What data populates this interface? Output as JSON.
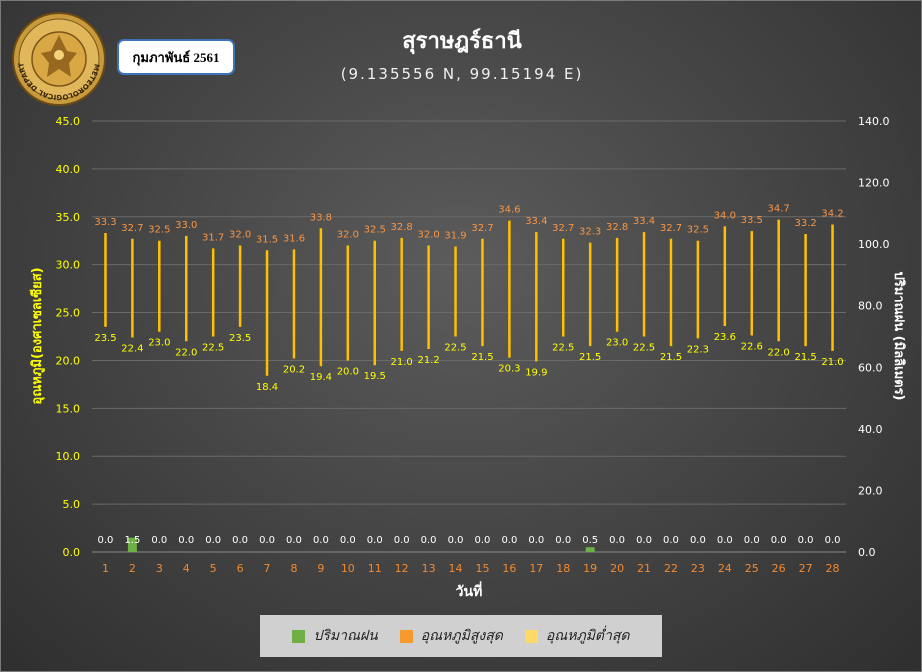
{
  "header": {
    "month_label": "กุมภาพันธ์ 2561",
    "logo_text": "METEOROLOGICAL DEPARTMENT"
  },
  "chart_data": {
    "type": "bar",
    "title": "สุราษฎร์ธานี",
    "subtitle": "(9.135556 N, 99.15194 E)",
    "xlabel": "วันที่",
    "ylabel_left": "อุณหภูมิ(องศาเซลเซียส)",
    "ylabel_right": "ปริมาณฝน (มิลลิเมตร)",
    "ylim_left": [
      0,
      45
    ],
    "ylim_right": [
      0,
      140
    ],
    "yticks_left": [
      "0.0",
      "5.0",
      "10.0",
      "15.0",
      "20.0",
      "25.0",
      "30.0",
      "35.0",
      "40.0",
      "45.0"
    ],
    "yticks_right": [
      "0.0",
      "20.0",
      "40.0",
      "60.0",
      "80.0",
      "100.0",
      "120.0",
      "140.0"
    ],
    "grid": true,
    "legend_position": "bottom",
    "categories": [
      "1",
      "2",
      "3",
      "4",
      "5",
      "6",
      "7",
      "8",
      "9",
      "10",
      "11",
      "12",
      "13",
      "14",
      "15",
      "16",
      "17",
      "18",
      "19",
      "20",
      "21",
      "22",
      "23",
      "24",
      "25",
      "26",
      "27",
      "28"
    ],
    "series": [
      {
        "name": "ปริมาณฝน",
        "axis": "left",
        "values": [
          0.0,
          1.5,
          0.0,
          0.0,
          0.0,
          0.0,
          0.0,
          0.0,
          0.0,
          0.0,
          0.0,
          0.0,
          0.0,
          0.0,
          0.0,
          0.0,
          0.0,
          0.0,
          0.5,
          0.0,
          0.0,
          0.0,
          0.0,
          0.0,
          0.0,
          0.0,
          0.0,
          0.0
        ]
      },
      {
        "name": "อุณหภูมิสูงสุด",
        "axis": "left",
        "values": [
          33.3,
          32.7,
          32.5,
          33.0,
          31.7,
          32.0,
          31.5,
          31.6,
          33.8,
          32.0,
          32.5,
          32.8,
          32.0,
          31.9,
          32.7,
          34.6,
          33.4,
          32.7,
          32.3,
          32.8,
          33.4,
          32.7,
          32.5,
          34.0,
          33.5,
          34.7,
          33.2,
          34.2
        ]
      },
      {
        "name": "อุณหภูมิต่ำสุด",
        "axis": "left",
        "values": [
          23.5,
          22.4,
          23.0,
          22.0,
          22.5,
          23.5,
          18.4,
          20.2,
          19.4,
          20.0,
          19.5,
          21.0,
          21.2,
          22.5,
          21.5,
          20.3,
          19.9,
          22.5,
          21.5,
          23.0,
          22.5,
          21.5,
          22.3,
          23.6,
          22.6,
          22.0,
          21.5,
          21.0
        ]
      }
    ]
  },
  "colors": {
    "rain": "#6fb046",
    "max_temp": "#f79a2e",
    "min_temp": "#ffd966",
    "range_line": "#ffc000",
    "max_label": "#f79646",
    "min_label": "#ffff00",
    "left_axis": "#ffff00",
    "right_axis": "#ffffff",
    "x_ticks": "#f28a30",
    "grid": "#6a6a6a",
    "month_box_border": "#3d74b8"
  }
}
